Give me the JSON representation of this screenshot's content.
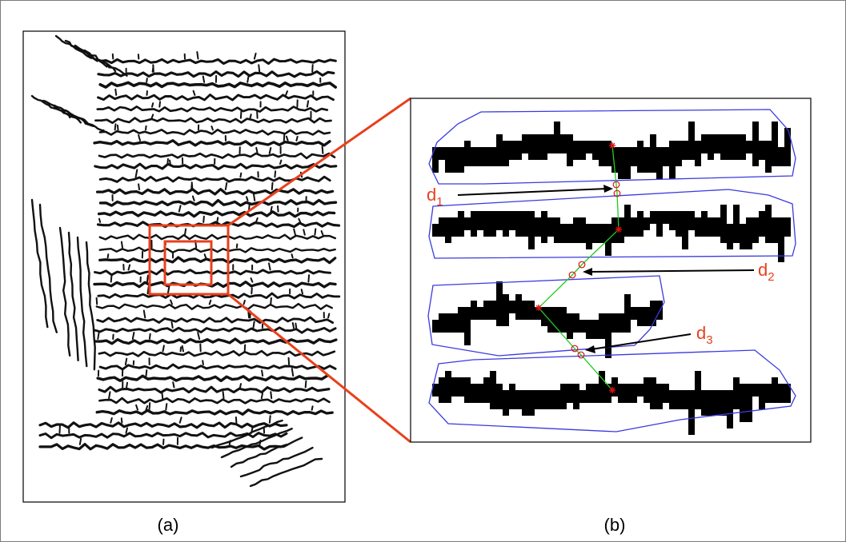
{
  "panels": {
    "a": {
      "caption": "(a)"
    },
    "b": {
      "caption": "(b)"
    }
  },
  "distance_labels": [
    {
      "base": "d",
      "sub": "1"
    },
    {
      "base": "d",
      "sub": "2"
    },
    {
      "base": "d",
      "sub": "3"
    }
  ],
  "colors": {
    "highlight": "#e8401c",
    "hull": "#3a3ae0",
    "path": "#22cc22",
    "ink": "#000000",
    "centroid": "#dd1111"
  }
}
